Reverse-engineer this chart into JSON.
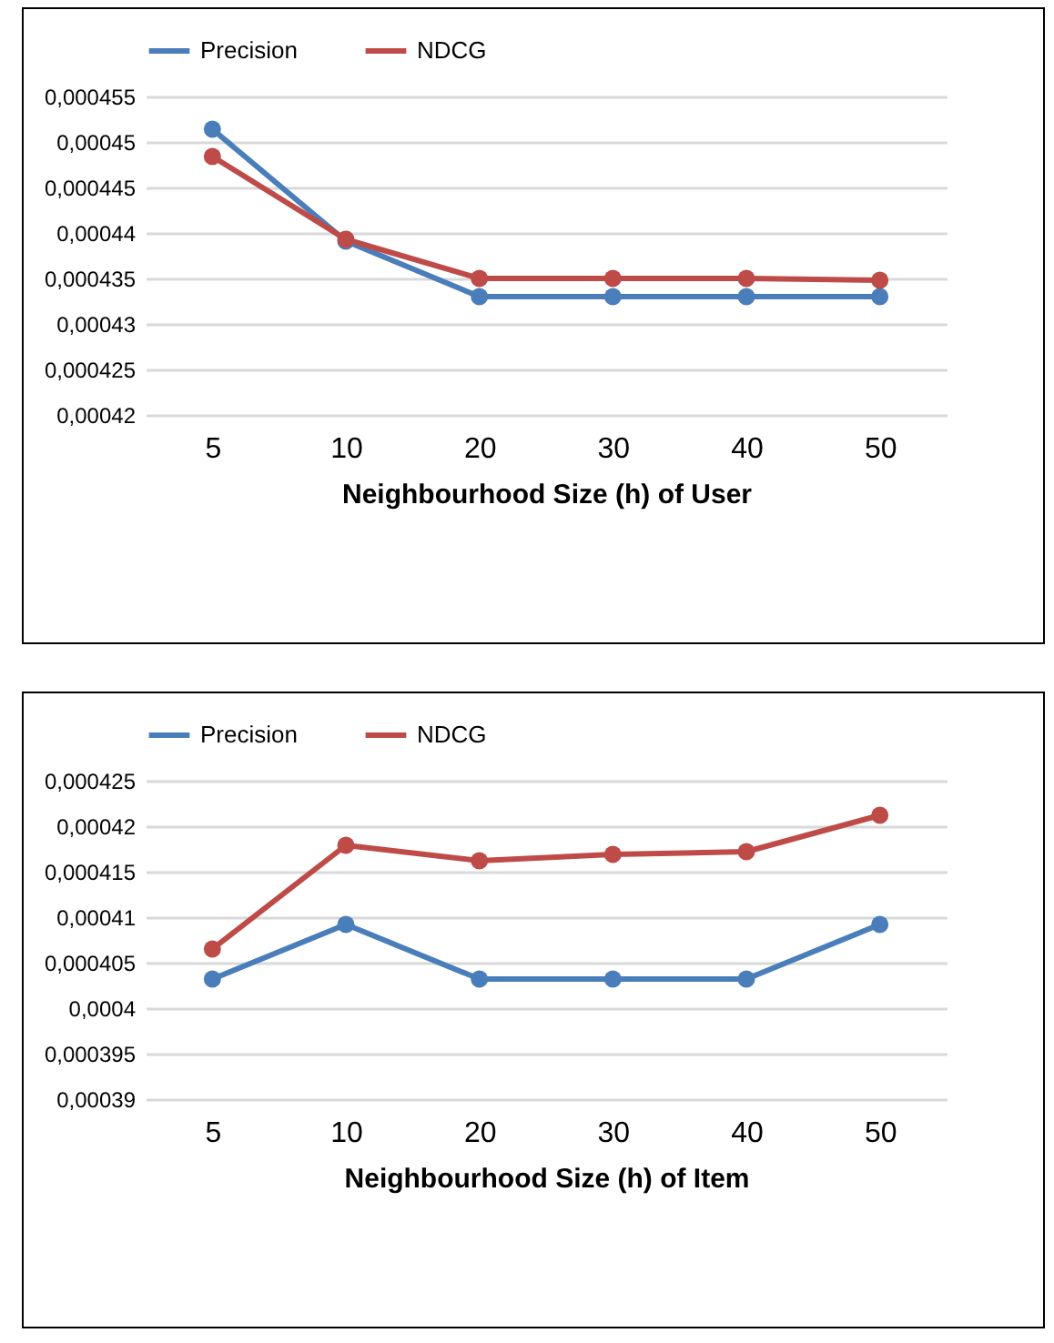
{
  "chart_data": [
    {
      "type": "line",
      "xlabel": "Neighbourhood Size (h) of User",
      "categories": [
        "5",
        "10",
        "20",
        "30",
        "40",
        "50"
      ],
      "series": [
        {
          "name": "Precision",
          "color": "#4a7ebb",
          "values": [
            0.0004514,
            0.0004391,
            0.000433,
            0.000433,
            0.000433,
            0.000433
          ]
        },
        {
          "name": "NDCG",
          "color": "#be4b48",
          "values": [
            0.0004484,
            0.0004393,
            0.000435,
            0.000435,
            0.000435,
            0.0004348
          ]
        }
      ],
      "ylim": [
        0.00042,
        0.000455
      ],
      "yticks": [
        {
          "value": 0.00042,
          "label": "0,00042"
        },
        {
          "value": 0.000425,
          "label": "0,000425"
        },
        {
          "value": 0.00043,
          "label": "0,00043"
        },
        {
          "value": 0.000435,
          "label": "0,000435"
        },
        {
          "value": 0.00044,
          "label": "0,00044"
        },
        {
          "value": 0.000445,
          "label": "0,000445"
        },
        {
          "value": 0.00045,
          "label": "0,00045"
        },
        {
          "value": 0.000455,
          "label": "0,000455"
        }
      ],
      "grid": "y",
      "legend": "top",
      "marker": "circle",
      "line_style": "solid"
    },
    {
      "type": "line",
      "xlabel": "Neighbourhood Size (h) of Item",
      "categories": [
        "5",
        "10",
        "20",
        "30",
        "40",
        "50"
      ],
      "series": [
        {
          "name": "Precision",
          "color": "#4a7ebb",
          "values": [
            0.0004032,
            0.0004092,
            0.0004032,
            0.0004032,
            0.0004032,
            0.0004092
          ]
        },
        {
          "name": "NDCG",
          "color": "#be4b48",
          "values": [
            0.0004065,
            0.0004179,
            0.0004162,
            0.0004169,
            0.0004172,
            0.0004212
          ]
        }
      ],
      "ylim": [
        0.00039,
        0.000425
      ],
      "yticks": [
        {
          "value": 0.00039,
          "label": "0,00039"
        },
        {
          "value": 0.000395,
          "label": "0,000395"
        },
        {
          "value": 0.0004,
          "label": "0,0004"
        },
        {
          "value": 0.000405,
          "label": "0,000405"
        },
        {
          "value": 0.00041,
          "label": "0,00041"
        },
        {
          "value": 0.000415,
          "label": "0,000415"
        },
        {
          "value": 0.00042,
          "label": "0,00042"
        },
        {
          "value": 0.000425,
          "label": "0,000425"
        }
      ],
      "grid": "y",
      "legend": "top",
      "marker": "circle",
      "line_style": "solid"
    }
  ]
}
